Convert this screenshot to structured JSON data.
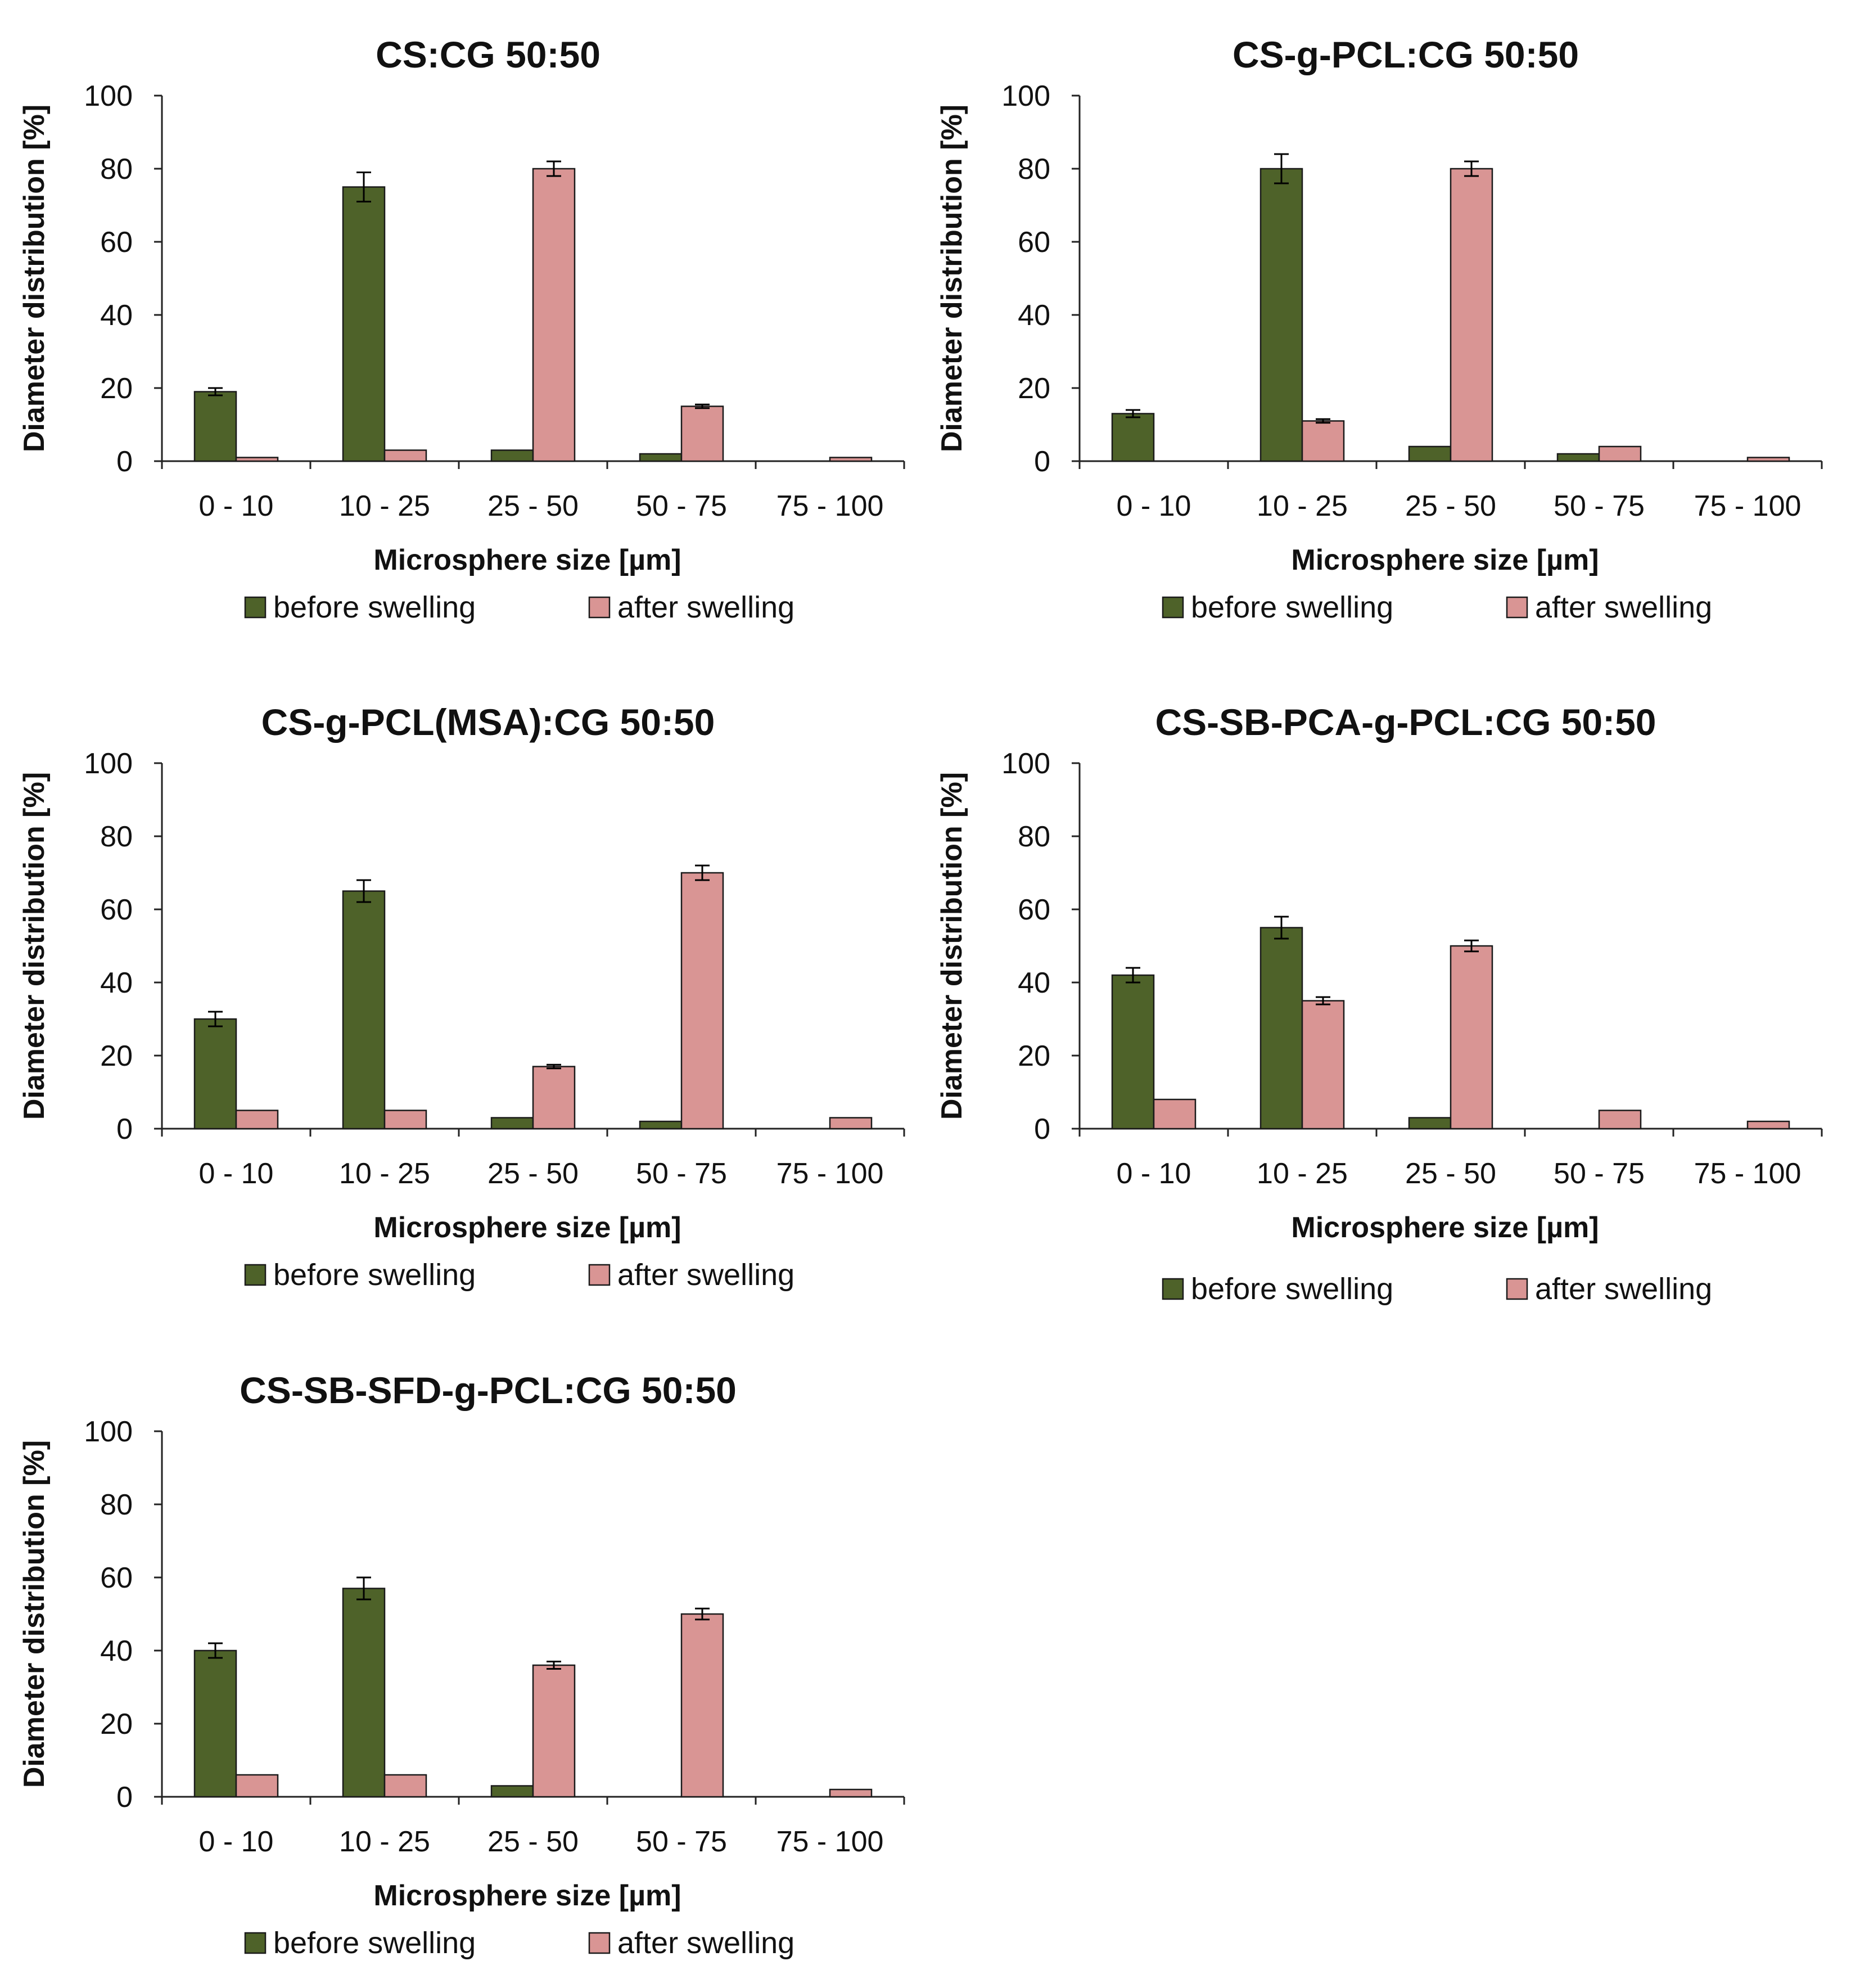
{
  "colors": {
    "before": "#4e6229",
    "after": "#d99594",
    "outline": "#1a1a1a",
    "axis": "#222222"
  },
  "chart_data": [
    {
      "type": "bar",
      "title": "CS:CG 50:50",
      "xlabel": "Microsphere size [µm]",
      "ylabel": "Diameter distribution [%]",
      "ylim": [
        0,
        100
      ],
      "yticks": [
        "0",
        "20",
        "40",
        "60",
        "80",
        "100"
      ],
      "categories": [
        "0  - 10",
        "10 - 25",
        "25 - 50",
        "50 - 75",
        "75 - 100"
      ],
      "series": [
        {
          "name": "before swelling",
          "values": [
            19,
            75,
            3,
            2,
            0
          ],
          "errors": [
            1,
            4,
            0,
            0,
            0
          ]
        },
        {
          "name": "after swelling",
          "values": [
            1,
            3,
            80,
            15,
            1
          ],
          "errors": [
            0,
            0,
            2,
            0.5,
            0
          ]
        }
      ]
    },
    {
      "type": "bar",
      "title": "CS-g-PCL:CG 50:50",
      "xlabel": "Microsphere size [µm]",
      "ylabel": "Diameter distribution [%]",
      "ylim": [
        0,
        100
      ],
      "yticks": [
        "0",
        "20",
        "40",
        "60",
        "80",
        "100"
      ],
      "categories": [
        "0  - 10",
        "10 - 25",
        "25 - 50",
        "50 - 75",
        "75 - 100"
      ],
      "series": [
        {
          "name": "before swelling",
          "values": [
            13,
            80,
            4,
            2,
            0
          ],
          "errors": [
            1,
            4,
            0,
            0,
            0
          ]
        },
        {
          "name": "after swelling",
          "values": [
            0,
            11,
            80,
            4,
            1
          ],
          "errors": [
            0,
            0.5,
            2,
            0,
            0
          ]
        }
      ]
    },
    {
      "type": "bar",
      "title": "CS-g-PCL(MSA):CG 50:50",
      "xlabel": "Microsphere size [µm]",
      "ylabel": "Diameter distribution [%]",
      "ylim": [
        0,
        100
      ],
      "yticks": [
        "0",
        "20",
        "40",
        "60",
        "80",
        "100"
      ],
      "categories": [
        "0  - 10",
        "10 - 25",
        "25 - 50",
        "50 - 75",
        "75 - 100"
      ],
      "series": [
        {
          "name": "before swelling",
          "values": [
            30,
            65,
            3,
            2,
            0
          ],
          "errors": [
            2,
            3,
            0,
            0,
            0
          ]
        },
        {
          "name": "after swelling",
          "values": [
            5,
            5,
            17,
            70,
            3
          ],
          "errors": [
            0,
            0,
            0.5,
            2,
            0
          ]
        }
      ]
    },
    {
      "type": "bar",
      "title": "CS-SB-PCA-g-PCL:CG 50:50",
      "xlabel": "Microsphere size [µm]",
      "ylabel": "Diameter distribution [%]",
      "ylim": [
        0,
        100
      ],
      "yticks": [
        "0",
        "20",
        "40",
        "60",
        "80",
        "100"
      ],
      "categories": [
        "0  - 10",
        "10 - 25",
        "25 - 50",
        "50 - 75",
        "75 - 100"
      ],
      "series": [
        {
          "name": "before swelling",
          "values": [
            42,
            55,
            3,
            0,
            0
          ],
          "errors": [
            2,
            3,
            0,
            0,
            0
          ]
        },
        {
          "name": "after swelling",
          "values": [
            8,
            35,
            50,
            5,
            2
          ],
          "errors": [
            0,
            1,
            1.5,
            0,
            0
          ]
        }
      ]
    },
    {
      "type": "bar",
      "title": "CS-SB-SFD-g-PCL:CG 50:50",
      "xlabel": "Microsphere size [µm]",
      "ylabel": "Diameter distribution [%]",
      "ylim": [
        0,
        100
      ],
      "yticks": [
        "0",
        "20",
        "40",
        "60",
        "80",
        "100"
      ],
      "categories": [
        "0  - 10",
        "10 - 25",
        "25 - 50",
        "50 - 75",
        "75 - 100"
      ],
      "series": [
        {
          "name": "before swelling",
          "values": [
            40,
            57,
            3,
            0,
            0
          ],
          "errors": [
            2,
            3,
            0,
            0,
            0
          ]
        },
        {
          "name": "after swelling",
          "values": [
            6,
            6,
            36,
            50,
            2
          ],
          "errors": [
            0,
            0,
            1,
            1.5,
            0
          ]
        }
      ]
    }
  ]
}
